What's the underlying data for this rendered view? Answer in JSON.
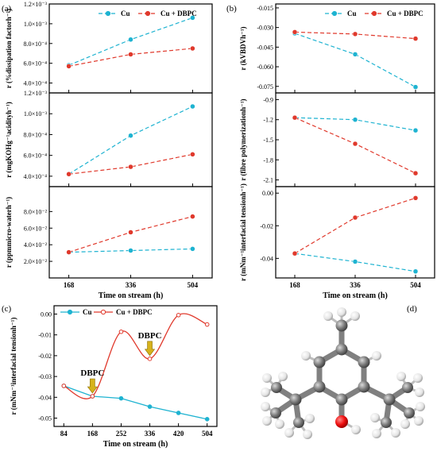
{
  "panel_labels": [
    "(a)",
    "(b)",
    "(c)",
    "(d)"
  ],
  "annotation_text": "DBPC",
  "chart_data": [
    {
      "id": "a1",
      "type": "line",
      "x": [
        168,
        336,
        504
      ],
      "xticks": [
        "168",
        "336",
        "504"
      ],
      "ylim": [
        0.0003,
        0.0012
      ],
      "yticks": [
        "4.0×10⁻⁴",
        "6.0×10⁻⁴",
        "8.0×10⁻⁴",
        "1.0×10⁻³",
        "1.2×10⁻³"
      ],
      "ytick_values": [
        0.0004,
        0.0006,
        0.0008,
        0.001,
        0.0012
      ],
      "ylabel": "r (%dissipation factorh⁻¹)",
      "legend": "top-right",
      "series": [
        {
          "name": "Cu",
          "color": "#1eb3d1",
          "values": [
            0.00058,
            0.00084,
            0.00106
          ]
        },
        {
          "name": "Cu + DBPC",
          "color": "#e0392c",
          "values": [
            0.00057,
            0.00069,
            0.00075
          ]
        }
      ]
    },
    {
      "id": "a2",
      "type": "line",
      "x": [
        168,
        336,
        504
      ],
      "xticks": [
        "168",
        "336",
        "504"
      ],
      "ylim": [
        0.0003,
        0.0012
      ],
      "yticks": [
        "4.0×10⁻⁴",
        "6.0×10⁻⁴",
        "8.0×10⁻⁴",
        "1.0×10⁻³",
        "1.2×10⁻³"
      ],
      "ytick_values": [
        0.0004,
        0.0006,
        0.0008,
        0.001,
        0.0012
      ],
      "ylabel": "r (mgKOHg⁻¹acidityh⁻¹)",
      "series": [
        {
          "name": "Cu",
          "color": "#1eb3d1",
          "values": [
            0.00042,
            0.00079,
            0.00107
          ]
        },
        {
          "name": "Cu + DBPC",
          "color": "#e0392c",
          "values": [
            0.00042,
            0.00049,
            0.00061
          ]
        }
      ]
    },
    {
      "id": "a3",
      "type": "line",
      "x": [
        168,
        336,
        504
      ],
      "xticks": [
        "168",
        "336",
        "504"
      ],
      "ylim": [
        0.0,
        0.11
      ],
      "yticks": [
        "2.0×10⁻²",
        "4.0×10⁻²",
        "6.0×10⁻²",
        "8.0×10⁻²"
      ],
      "ytick_values": [
        0.02,
        0.04,
        0.06,
        0.08
      ],
      "ylabel": "r (ppmmicro-waterh⁻¹)",
      "xlabel": "Time on stream (h)",
      "series": [
        {
          "name": "Cu",
          "color": "#1eb3d1",
          "values": [
            0.031,
            0.033,
            0.035
          ]
        },
        {
          "name": "Cu + DBPC",
          "color": "#e0392c",
          "values": [
            0.031,
            0.055,
            0.074
          ]
        }
      ]
    },
    {
      "id": "b1",
      "type": "line",
      "x": [
        168,
        336,
        504
      ],
      "xticks": [
        "168",
        "336",
        "504"
      ],
      "ylim": [
        -0.08,
        -0.012
      ],
      "yticks": [
        "-0.015",
        "-0.030",
        "-0.045",
        "-0.060",
        "-0.075"
      ],
      "ytick_values": [
        -0.015,
        -0.03,
        -0.045,
        -0.06,
        -0.075
      ],
      "ylabel": "r (kVBDVh⁻¹)",
      "legend": "top-right",
      "series": [
        {
          "name": "Cu",
          "color": "#1eb3d1",
          "values": [
            -0.0345,
            -0.0505,
            -0.0755
          ]
        },
        {
          "name": "Cu + DBPC",
          "color": "#e0392c",
          "values": [
            -0.0335,
            -0.035,
            -0.0385
          ]
        }
      ]
    },
    {
      "id": "b2",
      "type": "line",
      "x": [
        168,
        336,
        504
      ],
      "xticks": [
        "168",
        "336",
        "504"
      ],
      "ylim": [
        -2.2,
        -0.8
      ],
      "yticks": [
        "-0.9",
        "-1.2",
        "-1.5",
        "-1.8",
        "-2.1"
      ],
      "ytick_values": [
        -0.9,
        -1.2,
        -1.5,
        -1.8,
        -2.1
      ],
      "ylabel": "r (fibre polymerizationh⁻¹)",
      "series": [
        {
          "name": "Cu",
          "color": "#1eb3d1",
          "values": [
            -1.17,
            -1.2,
            -1.36
          ]
        },
        {
          "name": "Cu + DBPC",
          "color": "#e0392c",
          "values": [
            -1.17,
            -1.56,
            -2.0
          ]
        }
      ]
    },
    {
      "id": "b3",
      "type": "line",
      "x": [
        168,
        336,
        504
      ],
      "xticks": [
        "168",
        "336",
        "504"
      ],
      "ylim": [
        -0.052,
        0.004
      ],
      "yticks": [
        "0.00",
        "-0.02",
        "-0.04"
      ],
      "ytick_values": [
        0.0,
        -0.02,
        -0.04
      ],
      "ylabel": "r (mNm⁻¹interfacial tensionh⁻¹)",
      "xlabel": "Time on stream (h)",
      "series": [
        {
          "name": "Cu",
          "color": "#1eb3d1",
          "values": [
            -0.037,
            -0.042,
            -0.048
          ]
        },
        {
          "name": "Cu + DBPC",
          "color": "#e0392c",
          "values": [
            -0.037,
            -0.015,
            -0.003
          ]
        }
      ]
    },
    {
      "id": "c",
      "type": "line",
      "x": [
        84,
        168,
        252,
        336,
        420,
        504
      ],
      "xticks": [
        "84",
        "168",
        "252",
        "336",
        "420",
        "504"
      ],
      "ylim": [
        -0.054,
        0.004
      ],
      "yticks": [
        "0.00",
        "-0.01",
        "-0.02",
        "-0.03",
        "-0.04",
        "-0.05"
      ],
      "ytick_values": [
        0.0,
        -0.01,
        -0.02,
        -0.03,
        -0.04,
        -0.05
      ],
      "ylabel": "r (mNm⁻¹interfacial tensionh⁻¹)",
      "xlabel": "Time on stream (h)",
      "legend": "top-left",
      "series": [
        {
          "name": "Cu",
          "color": "#1eb3d1",
          "values": [
            -0.0345,
            -0.0395,
            -0.0405,
            -0.0445,
            -0.0475,
            -0.0505
          ]
        },
        {
          "name": "Cu + DBPC",
          "color": "#e0392c",
          "values": [
            -0.0345,
            -0.0395,
            -0.0085,
            -0.0215,
            -0.0005,
            -0.005
          ]
        }
      ]
    }
  ],
  "molecule": {
    "title": "",
    "atoms": "grey carbon, white hydrogen, red oxygen"
  }
}
